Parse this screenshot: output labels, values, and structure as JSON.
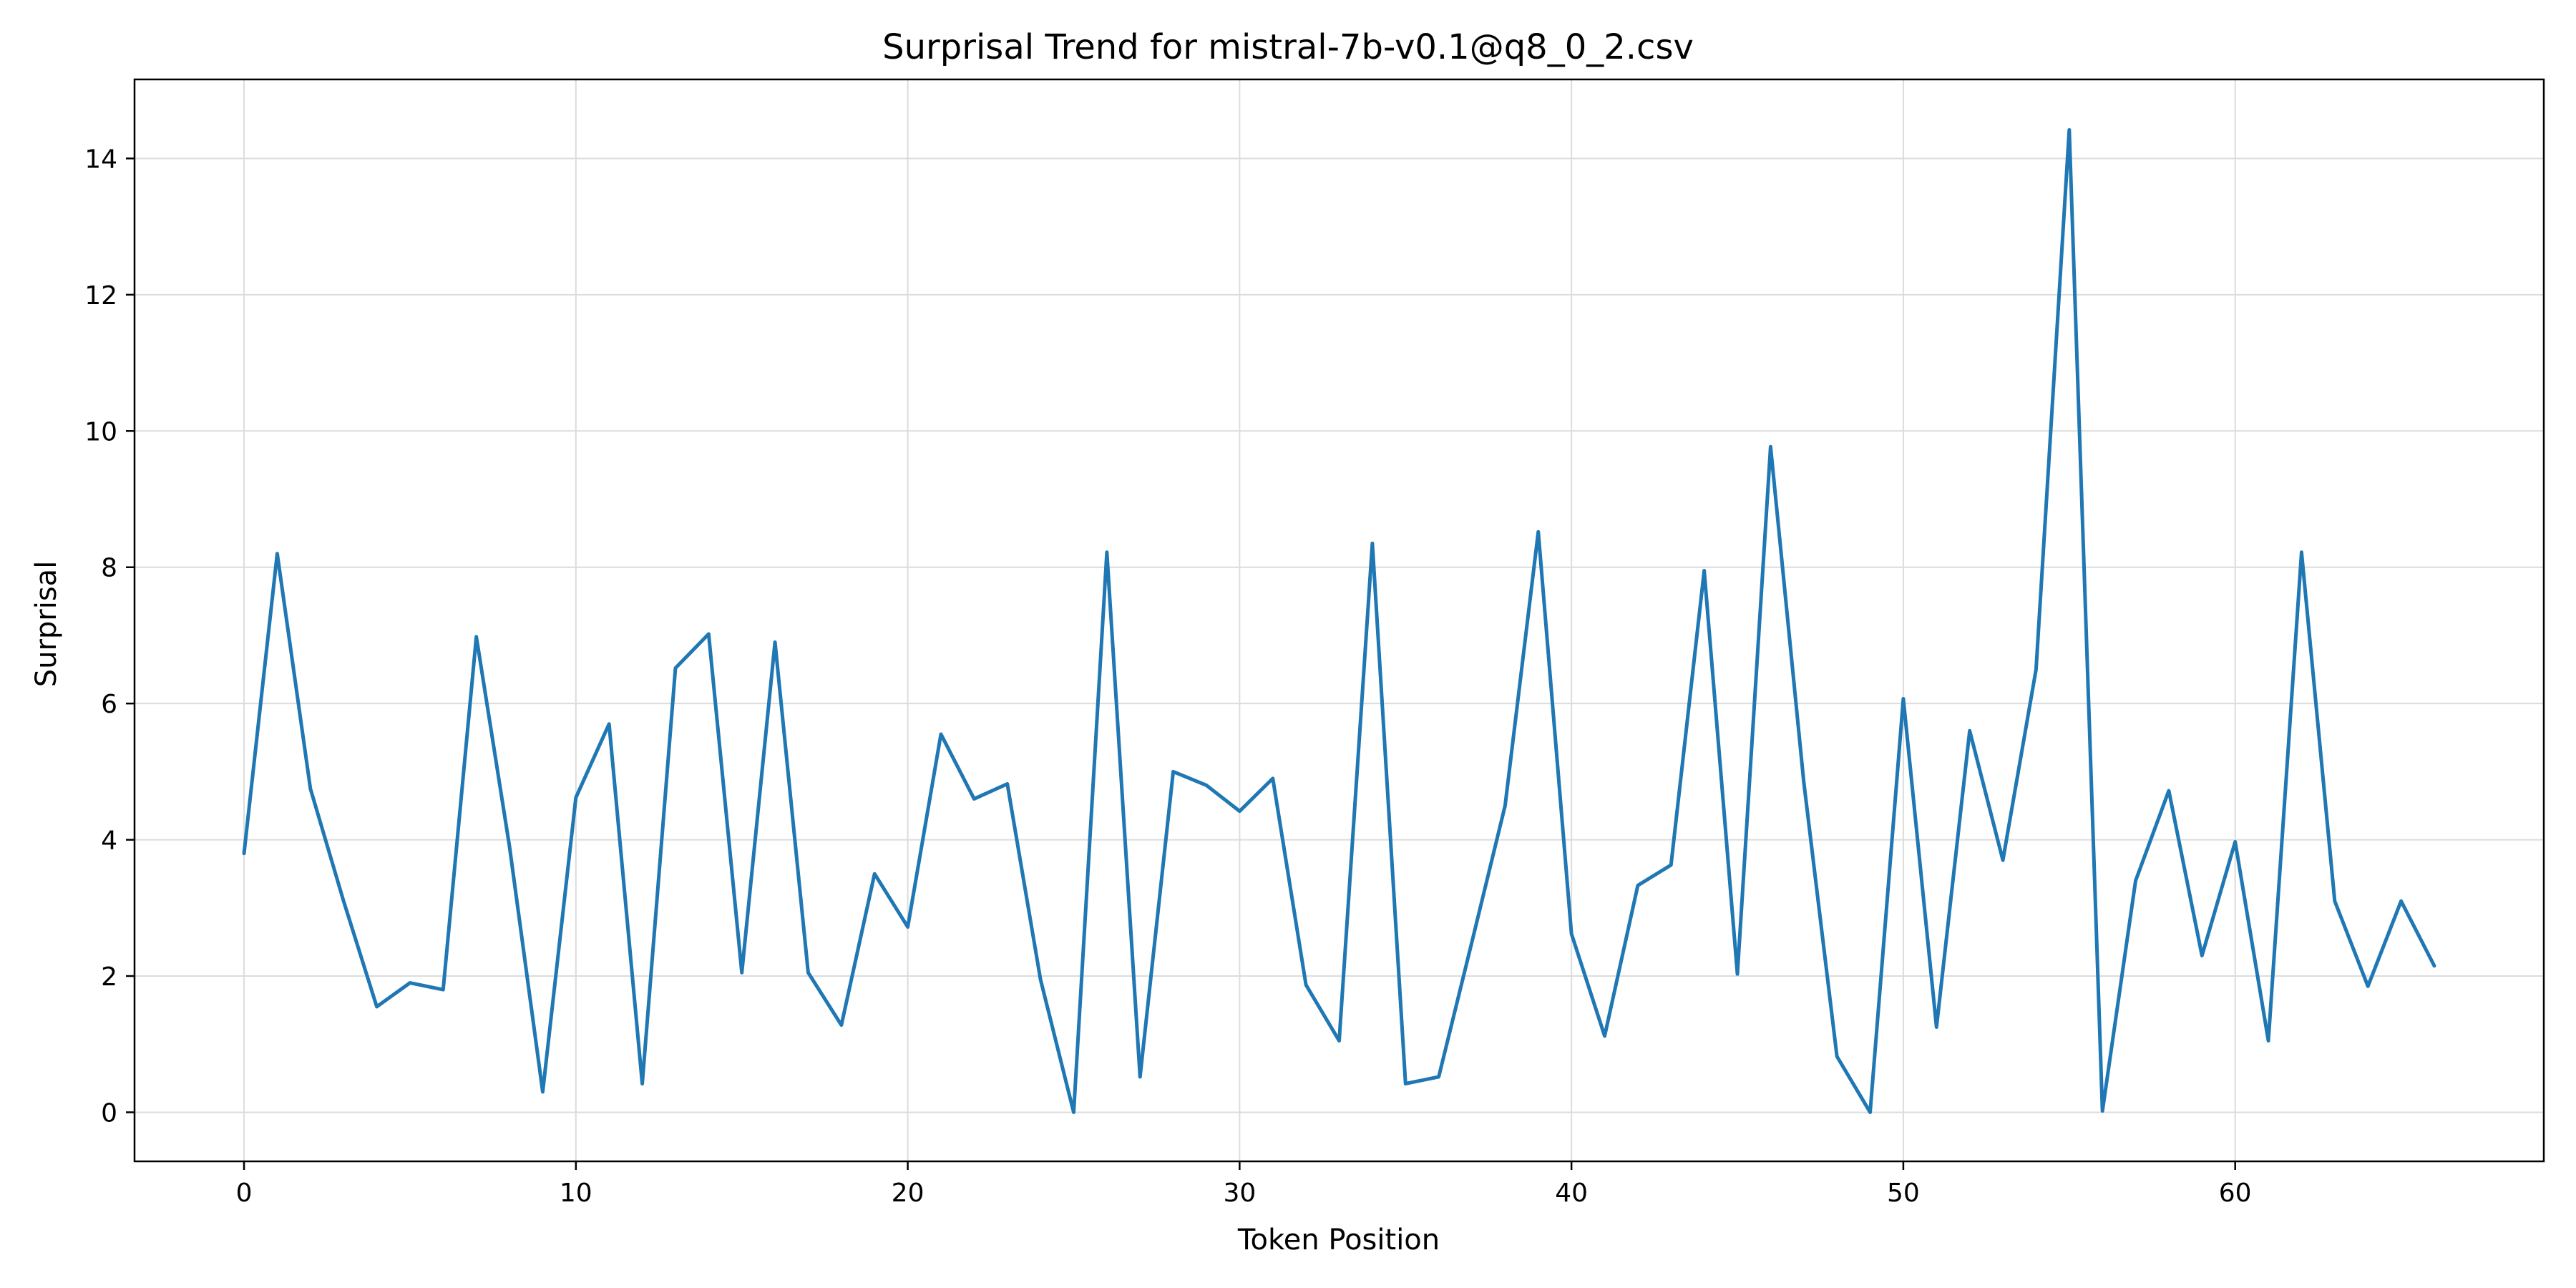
{
  "chart_data": {
    "type": "line",
    "title": "Surprisal Trend for mistral-7b-v0.1@q8_0_2.csv",
    "xlabel": "Token Position",
    "ylabel": "Surprisal",
    "xlim": [
      -3.3,
      69.3
    ],
    "ylim": [
      -0.72,
      15.16
    ],
    "xticks": [
      0,
      10,
      20,
      30,
      40,
      50,
      60
    ],
    "yticks": [
      0,
      2,
      4,
      6,
      8,
      10,
      12,
      14
    ],
    "grid": true,
    "legend": "none",
    "color": "#1f77b4",
    "series": [
      {
        "x": [
          0,
          1,
          2,
          3,
          4,
          5,
          6,
          7,
          8,
          9,
          10,
          11,
          12,
          13,
          14,
          15,
          16,
          17,
          18,
          19,
          20,
          21,
          22,
          23,
          24,
          25,
          26,
          27,
          28,
          29,
          30,
          31,
          32,
          33,
          34,
          35,
          36,
          37,
          38,
          39,
          40,
          41,
          42,
          43,
          44,
          45,
          46,
          47,
          48,
          49,
          50,
          51,
          52,
          53,
          54,
          55,
          56,
          57,
          58,
          59,
          60,
          61,
          62,
          63,
          64,
          65,
          66
        ],
        "values": [
          3.8,
          8.2,
          4.75,
          3.1,
          1.55,
          1.9,
          1.8,
          6.98,
          3.9,
          0.3,
          4.62,
          5.7,
          0.42,
          6.52,
          7.02,
          2.05,
          6.9,
          2.05,
          1.28,
          3.5,
          2.72,
          5.55,
          4.6,
          4.82,
          1.95,
          0.0,
          8.22,
          0.52,
          5.0,
          4.8,
          4.42,
          4.9,
          1.87,
          1.05,
          8.35,
          0.42,
          0.52,
          2.5,
          4.5,
          8.52,
          2.62,
          1.12,
          3.33,
          3.63,
          7.95,
          2.03,
          9.77,
          4.85,
          0.82,
          0.0,
          6.07,
          1.25,
          5.6,
          3.7,
          6.5,
          14.42,
          0.02,
          3.4,
          4.72,
          2.3,
          3.97,
          1.05,
          8.22,
          3.1,
          1.85,
          3.1,
          2.15
        ]
      }
    ]
  }
}
